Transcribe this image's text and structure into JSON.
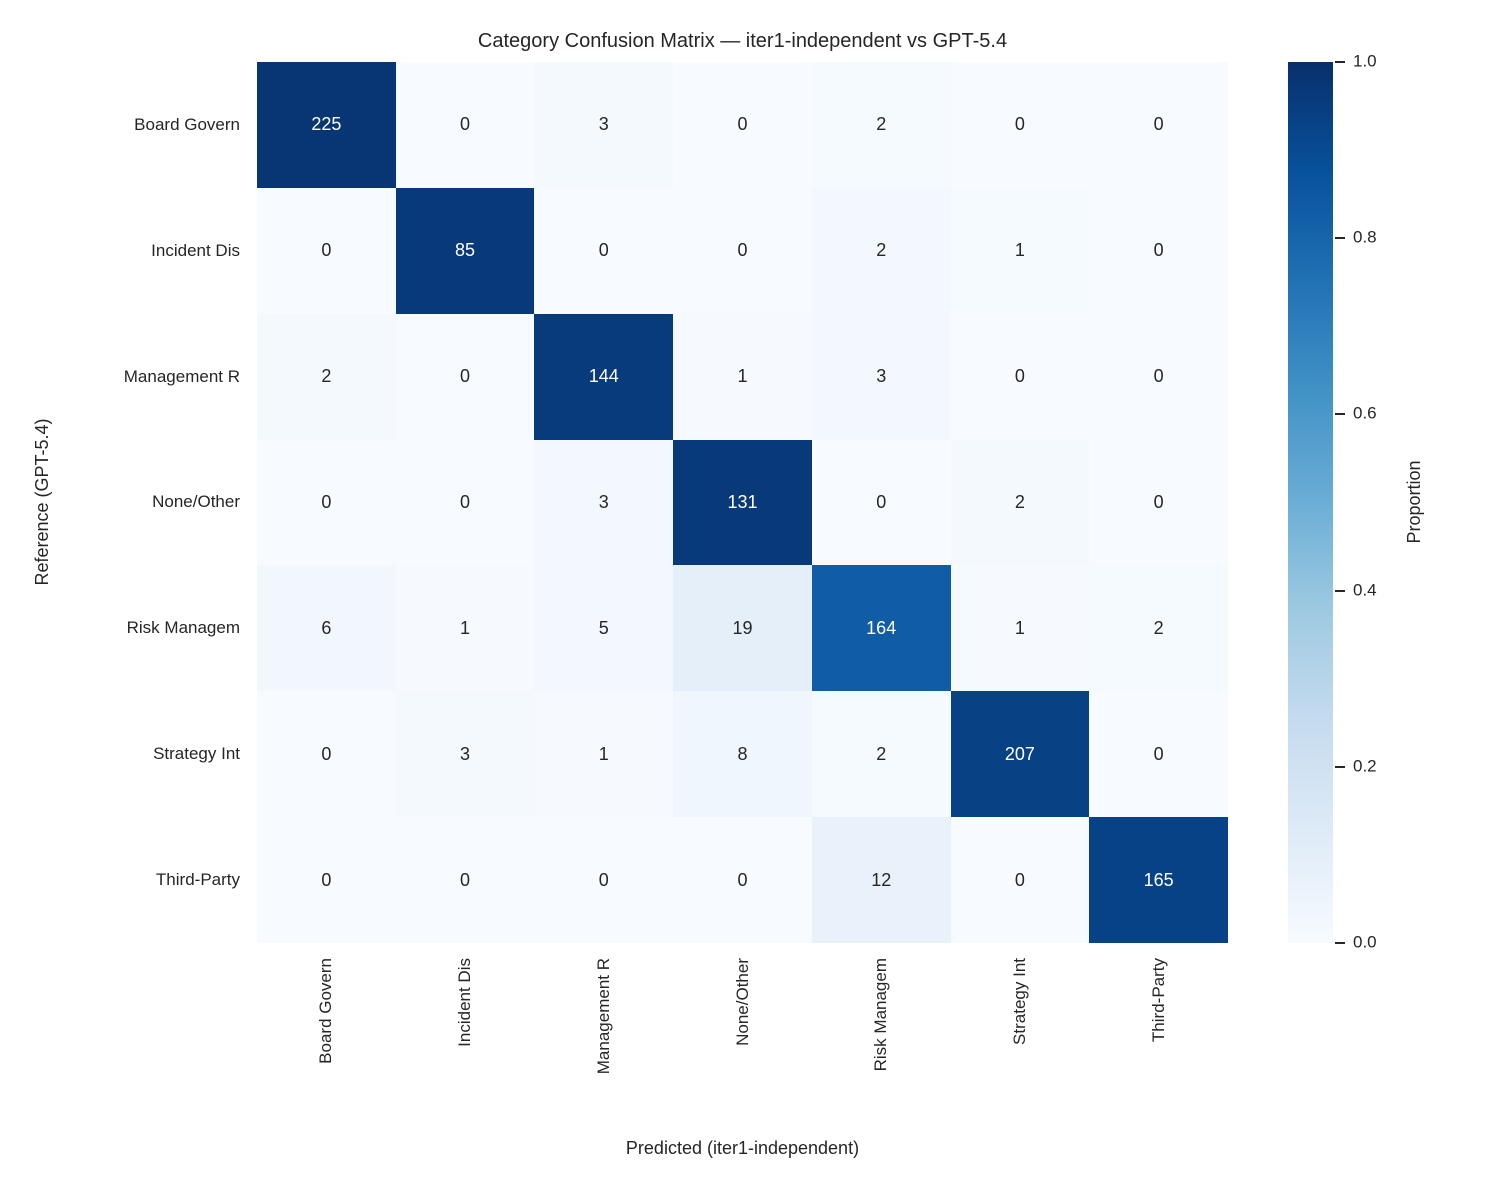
{
  "title": "Category Confusion Matrix — iter1-independent vs GPT-5.4",
  "chart_data": {
    "type": "heatmap",
    "title": "Category Confusion Matrix — iter1-independent vs GPT-5.4",
    "xlabel": "Predicted (iter1-independent)",
    "ylabel": "Reference (GPT-5.4)",
    "row_labels": [
      "Board Govern",
      "Incident Dis",
      "Management R",
      "None/Other",
      "Risk Managem",
      "Strategy Int",
      "Third-Party"
    ],
    "col_labels": [
      "Board Govern",
      "Incident Dis",
      "Management R",
      "None/Other",
      "Risk Managem",
      "Strategy Int",
      "Third-Party"
    ],
    "values": [
      [
        225,
        0,
        3,
        0,
        2,
        0,
        0
      ],
      [
        0,
        85,
        0,
        0,
        2,
        1,
        0
      ],
      [
        2,
        0,
        144,
        1,
        3,
        0,
        0
      ],
      [
        0,
        0,
        3,
        131,
        0,
        2,
        0
      ],
      [
        6,
        1,
        5,
        19,
        164,
        1,
        2
      ],
      [
        0,
        3,
        1,
        8,
        2,
        207,
        0
      ],
      [
        0,
        0,
        0,
        0,
        12,
        0,
        165
      ]
    ],
    "normalization": "row-proportion",
    "colormap": "Blues",
    "grid": false,
    "colorbar": {
      "label": "Proportion",
      "min": 0.0,
      "max": 1.0,
      "ticks": [
        "1.0",
        "0.8",
        "0.6",
        "0.4",
        "0.2",
        "0.0"
      ]
    }
  },
  "colors": {
    "background": "#ffffff",
    "text_dark": "#262626",
    "text_light": "#ffffff",
    "cmap_stops": [
      "#f7fbff",
      "#deebf7",
      "#c6dbef",
      "#9ecae1",
      "#6baed6",
      "#4292c6",
      "#2171b5",
      "#08519c",
      "#08306b"
    ]
  }
}
